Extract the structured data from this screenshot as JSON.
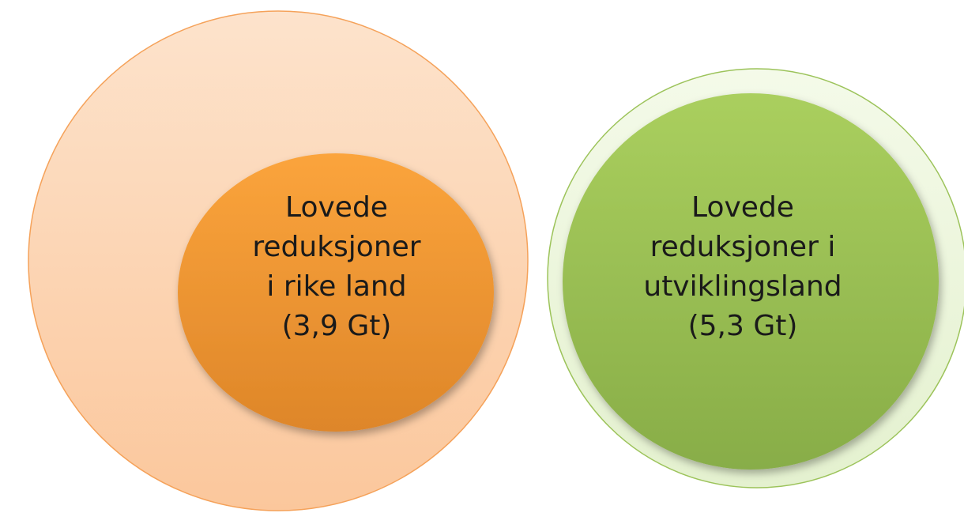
{
  "nodes": [
    {
      "lines": [
        "Lovede",
        "reduksjoner",
        "i rike land",
        "(3,9 Gt)"
      ]
    },
    {
      "lines": [
        "Lovede",
        "reduksjoner i",
        "utviklingsland",
        "(5,3 Gt)"
      ]
    }
  ]
}
